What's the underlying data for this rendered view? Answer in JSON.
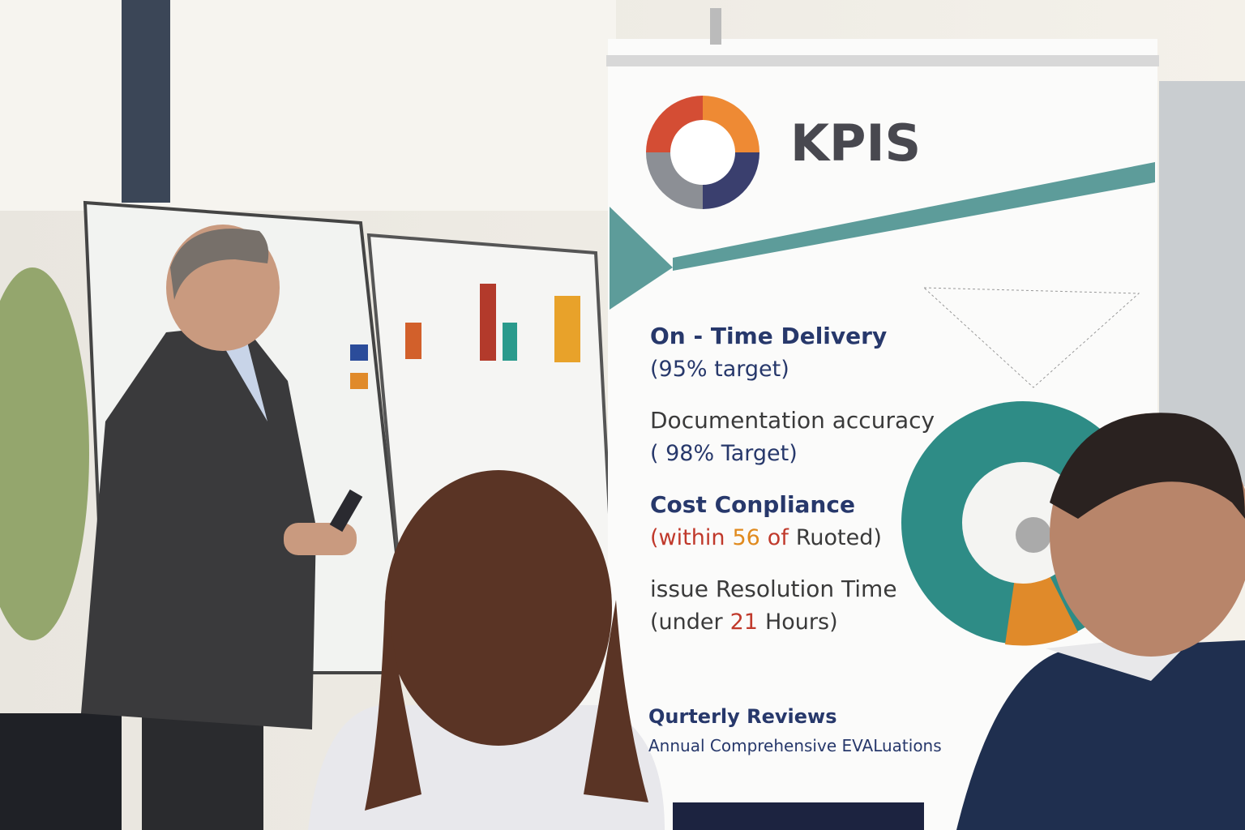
{
  "banner": {
    "title": "KPIS",
    "items": [
      {
        "label": "On - Time Delivery",
        "label_color": "#27386b",
        "detail": [
          {
            "text": "(95% target)",
            "color": "#27386b"
          }
        ]
      },
      {
        "label": "Documentation accuracy",
        "label_color": "#3a3a3a",
        "detail": [
          {
            "text": "( 98% Target)",
            "color": "#27386b"
          }
        ]
      },
      {
        "label": "Cost Conpliance",
        "label_color": "#27386b",
        "detail": [
          {
            "text": "(within",
            "color": "#c0392b"
          },
          {
            "text": "56",
            "color": "#e08a1e"
          },
          {
            "text": "of",
            "color": "#c0392b"
          },
          {
            "text": "Ruoted)",
            "color": "#3a3a3a"
          }
        ]
      },
      {
        "label": "issue Resolution  Time",
        "label_color": "#3a3a3a",
        "detail": [
          {
            "text": "(under",
            "color": "#3a3a3a"
          },
          {
            "text": "21",
            "color": "#c0392b"
          },
          {
            "text": "Hours)",
            "color": "#3a3a3a"
          }
        ]
      }
    ],
    "footer": [
      "Qurterly Reviews",
      "Annual Comprehensive EVALuations"
    ]
  }
}
